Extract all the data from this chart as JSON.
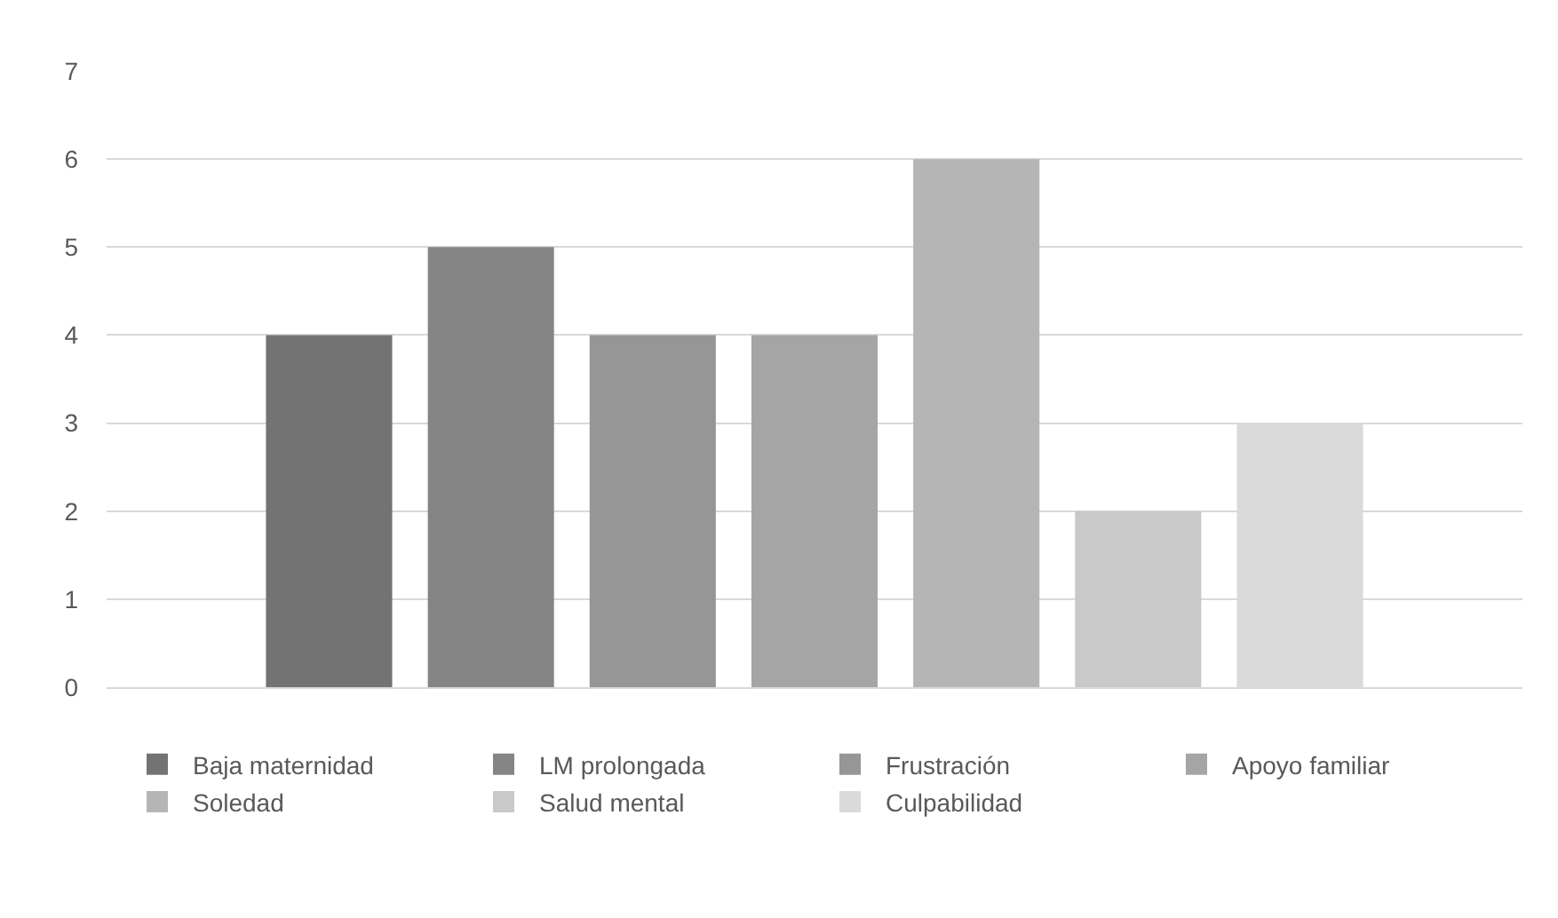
{
  "chart_data": {
    "type": "bar",
    "categories": [
      null
    ],
    "series": [
      {
        "name": "Baja maternidad",
        "color": "#737373",
        "values": [
          4
        ]
      },
      {
        "name": "LM prolongada",
        "color": "#858585",
        "values": [
          5
        ]
      },
      {
        "name": "Frustración",
        "color": "#969696",
        "values": [
          4
        ]
      },
      {
        "name": "Apoyo familiar",
        "color": "#a5a5a5",
        "values": [
          4
        ]
      },
      {
        "name": "Soledad",
        "color": "#b5b5b5",
        "values": [
          6
        ]
      },
      {
        "name": "Salud mental",
        "color": "#c9c9c9",
        "values": [
          2
        ]
      },
      {
        "name": "Culpabilidad",
        "color": "#dadada",
        "values": [
          3
        ]
      }
    ],
    "ylim": [
      0,
      7
    ],
    "yticks": [
      0,
      1,
      2,
      3,
      4,
      5,
      6,
      7
    ],
    "grid": "y",
    "legend": "bottom"
  }
}
